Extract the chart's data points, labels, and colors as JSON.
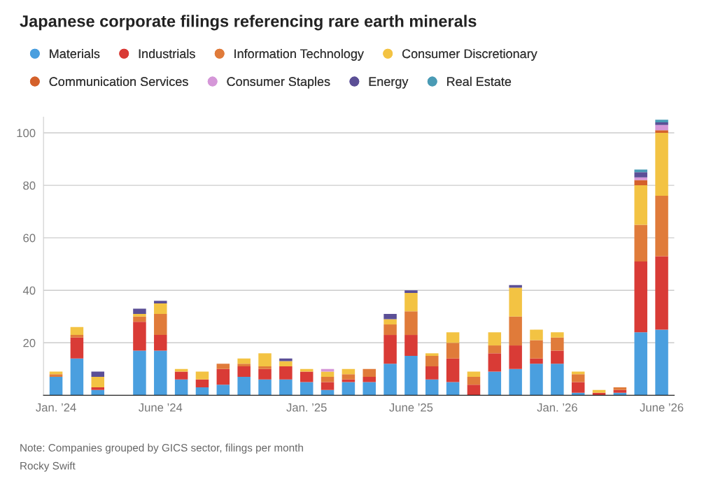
{
  "chart_data": {
    "type": "bar",
    "title": "Japanese corporate filings referencing rare earth minerals",
    "categories": [
      "Jan. ’24",
      null,
      null,
      null,
      null,
      "June ’24",
      null,
      null,
      null,
      null,
      null,
      null,
      "Jan. ’25",
      null,
      null,
      null,
      null,
      "June ’25",
      null,
      null,
      null,
      null,
      null,
      null,
      "Jan. ’26",
      null,
      null,
      null,
      null,
      "June ’26"
    ],
    "stacked": true,
    "series": [
      {
        "name": "Materials",
        "color": "#4a9fdf",
        "values": [
          7,
          14,
          2,
          0,
          17,
          17,
          6,
          3,
          4,
          7,
          6,
          6,
          5,
          2,
          5,
          5,
          12,
          15,
          6,
          5,
          0,
          9,
          10,
          12,
          12,
          1,
          0,
          1,
          24,
          25
        ]
      },
      {
        "name": "Industrials",
        "color": "#d93b36",
        "values": [
          0,
          8,
          1,
          0,
          11,
          6,
          3,
          3,
          6,
          4,
          4,
          5,
          4,
          3,
          1,
          2,
          11,
          8,
          5,
          9,
          4,
          7,
          9,
          2,
          5,
          4,
          1,
          1,
          27,
          28
        ]
      },
      {
        "name": "Information Technology",
        "color": "#e07b3a",
        "values": [
          1,
          1,
          0,
          0,
          2,
          8,
          0,
          0,
          2,
          1,
          1,
          0,
          0,
          2,
          2,
          3,
          4,
          9,
          4,
          6,
          3,
          3,
          11,
          7,
          5,
          3,
          0,
          1,
          14,
          23
        ]
      },
      {
        "name": "Consumer Discretionary",
        "color": "#f3c343",
        "values": [
          1,
          3,
          4,
          0,
          1,
          4,
          1,
          3,
          0,
          2,
          5,
          2,
          1,
          2,
          2,
          0,
          2,
          7,
          1,
          4,
          2,
          5,
          11,
          4,
          2,
          1,
          1,
          0,
          15,
          24
        ]
      },
      {
        "name": "Communication Services",
        "color": "#d4612b",
        "values": [
          0,
          0,
          0,
          0,
          0,
          0,
          0,
          0,
          0,
          0,
          0,
          0,
          0,
          0,
          0,
          0,
          0,
          0,
          0,
          0,
          0,
          0,
          0,
          0,
          0,
          0,
          0,
          0,
          2,
          1
        ]
      },
      {
        "name": "Consumer Staples",
        "color": "#d597d8",
        "values": [
          0,
          0,
          0,
          0,
          0,
          0,
          0,
          0,
          0,
          0,
          0,
          0,
          0,
          1,
          0,
          0,
          0,
          0,
          0,
          0,
          0,
          0,
          0,
          0,
          0,
          0,
          0,
          0,
          1,
          2
        ]
      },
      {
        "name": "Energy",
        "color": "#5b4f96",
        "values": [
          0,
          0,
          2,
          0,
          2,
          1,
          0,
          0,
          0,
          0,
          0,
          1,
          0,
          0,
          0,
          0,
          2,
          1,
          0,
          0,
          0,
          0,
          1,
          0,
          0,
          0,
          0,
          0,
          2,
          1
        ]
      },
      {
        "name": "Real Estate",
        "color": "#4a9bb5",
        "values": [
          0,
          0,
          0,
          0,
          0,
          0,
          0,
          0,
          0,
          0,
          0,
          0,
          0,
          0,
          0,
          0,
          0,
          0,
          0,
          0,
          0,
          0,
          0,
          0,
          0,
          0,
          0,
          0,
          1,
          1
        ]
      }
    ],
    "ylim": [
      0,
      106
    ],
    "yticks": [
      20,
      40,
      60,
      80,
      100
    ],
    "grid": "y",
    "legend": "top",
    "annotations": [
      "Note: Companies grouped by GICS sector, filings per month",
      "Rocky Swift"
    ]
  }
}
